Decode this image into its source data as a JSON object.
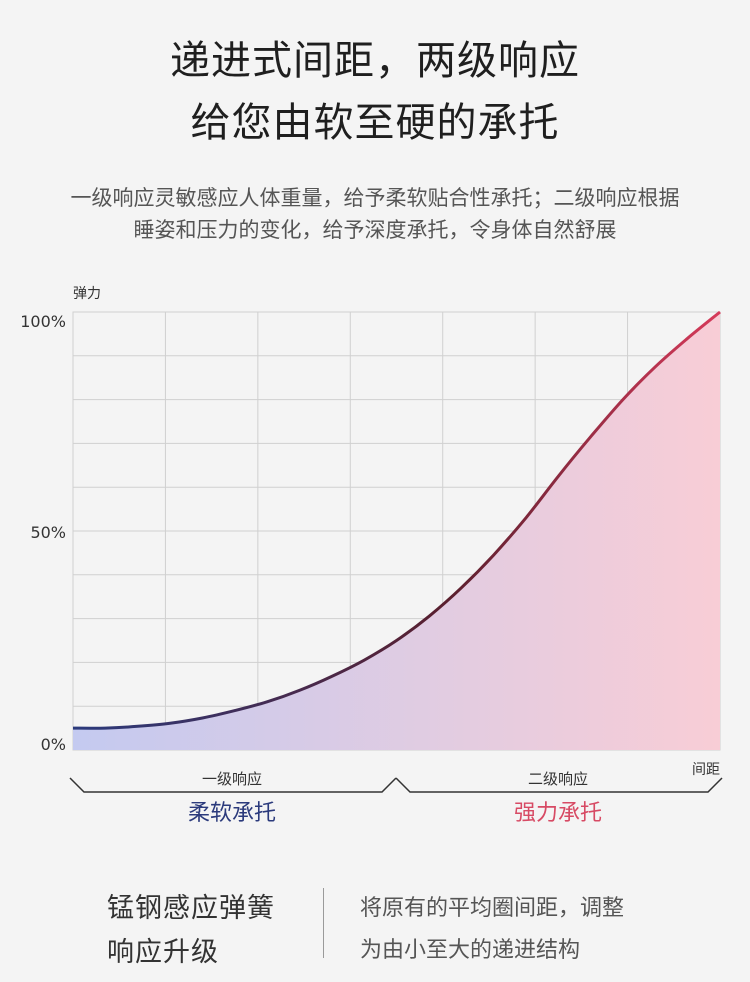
{
  "header": {
    "line1": "递进式间距，两级响应",
    "line2": "给您由软至硬的承托"
  },
  "description": {
    "line1": "一级响应灵敏感应人体重量，给予柔软贴合性承托；二级响应根据",
    "line2": "睡姿和压力的变化，给予深度承托，令身体自然舒展"
  },
  "chart_data": {
    "type": "area",
    "ylabel": "弹力",
    "xlabel": "间距",
    "ylim": [
      0,
      100
    ],
    "y_ticks": [
      "100%",
      "50%",
      "0%"
    ],
    "x": [
      0,
      0.05,
      0.1,
      0.15,
      0.2,
      0.25,
      0.3,
      0.35,
      0.4,
      0.45,
      0.5,
      0.55,
      0.6,
      0.65,
      0.7,
      0.75,
      0.8,
      0.85,
      0.9,
      0.95,
      1.0
    ],
    "values": [
      5,
      5,
      5.4,
      6.1,
      7.3,
      9.0,
      11.0,
      13.6,
      16.8,
      20.5,
      25.0,
      30.5,
      37.0,
      44.5,
      53.0,
      62.5,
      71.5,
      80.0,
      87.5,
      94.0,
      100
    ],
    "zones": [
      {
        "label": "一级响应",
        "name": "柔软承托",
        "color": "#2b3a7c"
      },
      {
        "label": "二级响应",
        "name": "强力承托",
        "color": "#d74a64"
      }
    ],
    "colors": {
      "curve_start": "#2b3a7c",
      "curve_mid": "#5a1f2e",
      "curve_end": "#d63a5a",
      "fill_start": "#c4caf0",
      "fill_end": "#f8cdd6",
      "grid": "#d0d0d0"
    },
    "grid": true
  },
  "features": {
    "title_line1": "锰钢感应弹簧",
    "title_line2": "响应升级",
    "desc_line1": "将原有的平均圈间距，调整",
    "desc_line2": "为由小至大的递进结构"
  }
}
